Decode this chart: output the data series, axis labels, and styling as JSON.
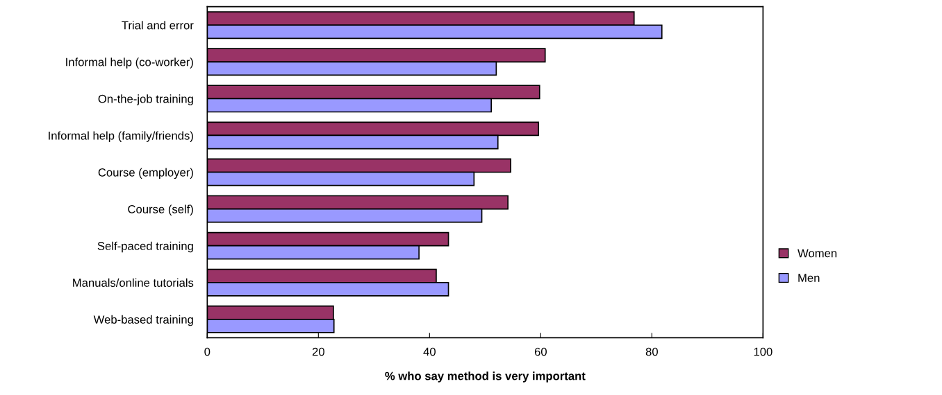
{
  "chart_data": {
    "type": "bar",
    "orientation": "horizontal",
    "xlabel": "% who say method is very important",
    "categories": [
      "Trial and error",
      "Informal help (co-worker)",
      "On-the-job training",
      "Informal help (family/friends)",
      "Course (employer)",
      "Course (self)",
      "Self-paced training",
      "Manuals/online tutorials",
      "Web-based training"
    ],
    "series": [
      {
        "name": "Women",
        "color": "#993366",
        "values": [
          76.8,
          60.8,
          59.8,
          59.6,
          54.6,
          54.1,
          43.4,
          41.2,
          22.7
        ]
      },
      {
        "name": "Men",
        "color": "#9999ff",
        "values": [
          81.8,
          52.0,
          51.1,
          52.3,
          48.0,
          49.4,
          38.1,
          43.4,
          22.8
        ]
      }
    ],
    "xlim": [
      0,
      100
    ],
    "xticks": [
      0,
      20,
      40,
      60,
      80,
      100
    ],
    "grid": false,
    "legend": "right"
  }
}
